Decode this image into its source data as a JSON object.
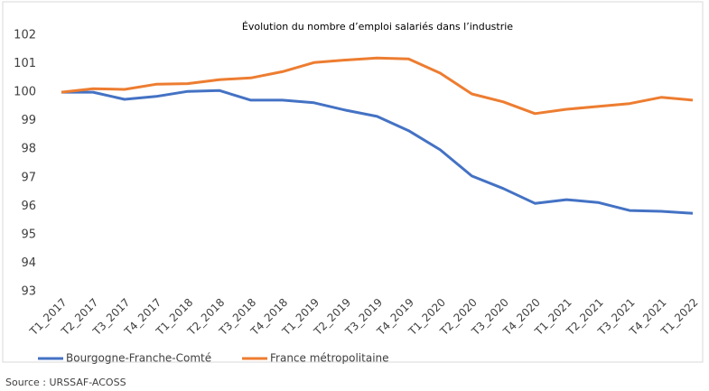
{
  "chart_data": {
    "type": "line",
    "title": "Évolution du nombre d’emploi salariés dans l’industrie",
    "categories": [
      "T1_2017",
      "T2_2017",
      "T3_2017",
      "T4_2017",
      "T1_2018",
      "T2_2018",
      "T3_2018",
      "T4_2018",
      "T1_2019",
      "T2_2019",
      "T3_2019",
      "T4_2019",
      "T1_2020",
      "T2_2020",
      "T3_2020",
      "T4_2020",
      "T1_2021",
      "T2_2021",
      "T3_2021",
      "T4_2021",
      "T1_2022"
    ],
    "series": [
      {
        "name": "Bourgogne-Franche-Comté",
        "color": "#4472c4",
        "values": [
          100,
          100.0,
          99.75,
          99.85,
          100.03,
          100.06,
          99.72,
          99.72,
          99.63,
          99.37,
          99.15,
          98.65,
          97.98,
          97.06,
          96.62,
          96.1,
          96.23,
          96.13,
          95.85,
          95.82,
          95.75
        ]
      },
      {
        "name": "France métropolitaine",
        "color": "#ed7d31",
        "values": [
          100,
          100.12,
          100.1,
          100.28,
          100.3,
          100.44,
          100.5,
          100.72,
          101.04,
          101.13,
          101.2,
          101.17,
          100.67,
          99.94,
          99.66,
          99.25,
          99.4,
          99.5,
          99.6,
          99.82,
          99.72
        ]
      }
    ],
    "ylim": [
      93,
      102
    ],
    "yticks": [
      93,
      94,
      95,
      96,
      97,
      98,
      99,
      100,
      101,
      102
    ],
    "grid": false,
    "legend": "bottom-left",
    "source": "Source : URSSAF-ACOSS"
  }
}
